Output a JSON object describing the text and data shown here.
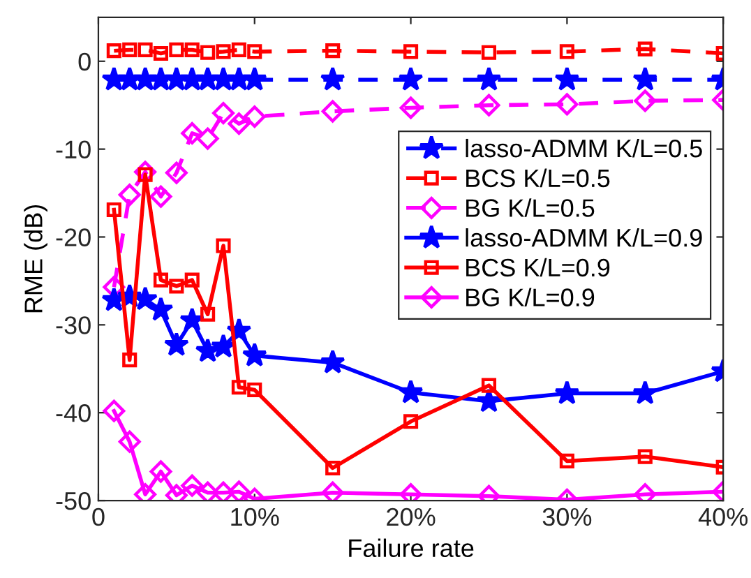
{
  "chart_data": {
    "type": "line",
    "xlabel": "Failure rate",
    "ylabel": "RME (dB)",
    "x": [
      1,
      2,
      3,
      4,
      5,
      6,
      7,
      8,
      9,
      10,
      15,
      20,
      25,
      30,
      35,
      40
    ],
    "xlim": [
      0,
      40
    ],
    "xticks": [
      0,
      {
        "value": 10,
        "label": "10%"
      },
      {
        "value": 20,
        "label": "20%"
      },
      {
        "value": 30,
        "label": "30%"
      },
      {
        "value": 40,
        "label": "40%"
      }
    ],
    "ylim": [
      -50,
      5
    ],
    "yticks": [
      -50,
      -40,
      -30,
      -20,
      -10,
      0
    ],
    "grid": false,
    "legend": "right",
    "series": [
      {
        "name": "lasso-ADMM K/L=0.5",
        "color": "#0000ff",
        "marker": "star",
        "line_style": "dashed",
        "values": [
          -2.1,
          -2.1,
          -2.1,
          -2.1,
          -2.1,
          -2.1,
          -2.1,
          -2.1,
          -2.1,
          -2.1,
          -2.1,
          -2.1,
          -2.1,
          -2.1,
          -2.1,
          -2.1
        ]
      },
      {
        "name": "BCS K/L=0.5",
        "color": "#ff0000",
        "marker": "square",
        "line_style": "dashed",
        "values": [
          1.2,
          1.3,
          1.3,
          0.9,
          1.3,
          1.3,
          1.0,
          1.1,
          1.3,
          1.1,
          1.2,
          1.1,
          1.0,
          1.1,
          1.4,
          0.9
        ]
      },
      {
        "name": "BG K/L=0.5",
        "color": "#ff00ff",
        "marker": "diamond",
        "line_style": "dashed",
        "values": [
          -25.7,
          -15.2,
          -12.6,
          -15.4,
          -12.7,
          -8.2,
          -8.8,
          -5.9,
          -7.1,
          -6.3,
          -5.7,
          -5.3,
          -5.0,
          -4.9,
          -4.5,
          -4.4
        ]
      },
      {
        "name": "lasso-ADMM K/L=0.9",
        "color": "#0000ff",
        "marker": "star",
        "line_style": "solid",
        "values": [
          -27.2,
          -26.8,
          -27.1,
          -28.3,
          -32.3,
          -29.5,
          -33.0,
          -32.5,
          -30.7,
          -33.5,
          -34.3,
          -37.7,
          -38.7,
          -37.8,
          -37.8,
          -35.3
        ]
      },
      {
        "name": "BCS K/L=0.9",
        "color": "#ff0000",
        "marker": "square",
        "line_style": "solid",
        "values": [
          -16.9,
          -34.0,
          -12.9,
          -24.9,
          -25.6,
          -24.9,
          -28.8,
          -21.0,
          -37.1,
          -37.4,
          -46.3,
          -41.0,
          -36.9,
          -45.5,
          -45.0,
          -46.2
        ]
      },
      {
        "name": "BG K/L=0.9",
        "color": "#ff00ff",
        "marker": "diamond",
        "line_style": "solid",
        "values": [
          -39.8,
          -43.3,
          -49.3,
          -46.7,
          -49.4,
          -48.3,
          -49.1,
          -49.1,
          -49.0,
          -49.8,
          -49.1,
          -49.3,
          -49.5,
          -49.9,
          -49.3,
          -49.0
        ]
      }
    ]
  }
}
